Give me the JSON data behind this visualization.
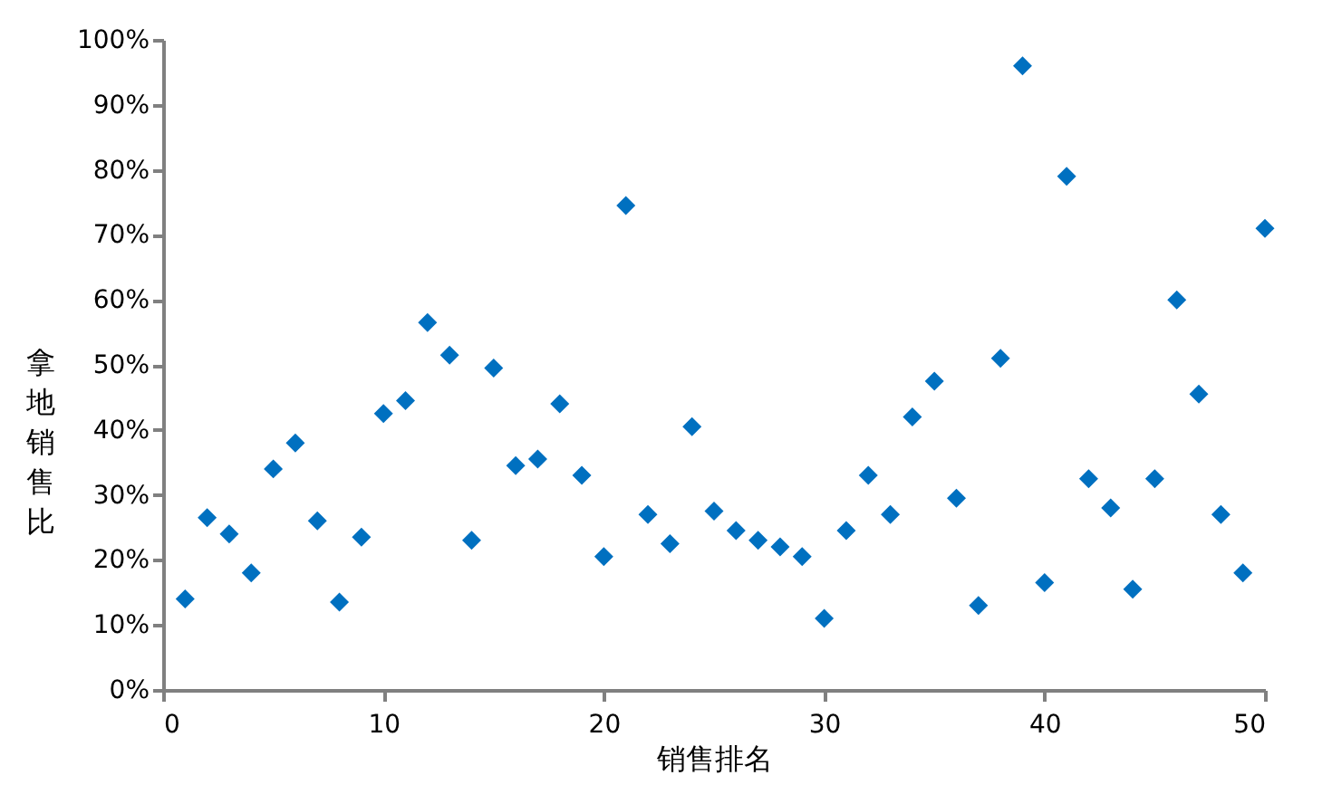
{
  "chart_data": {
    "type": "scatter",
    "xlabel": "销售排名",
    "ylabel": "拿地销售比",
    "x": [
      1,
      2,
      3,
      4,
      5,
      6,
      7,
      8,
      9,
      10,
      11,
      12,
      13,
      14,
      15,
      16,
      17,
      18,
      19,
      20,
      21,
      22,
      23,
      24,
      25,
      26,
      27,
      28,
      29,
      30,
      31,
      32,
      33,
      34,
      35,
      36,
      37,
      38,
      39,
      40,
      41,
      42,
      43,
      44,
      45,
      46,
      47,
      48,
      49,
      50
    ],
    "series": [
      {
        "color": "#0070c0",
        "values": [
          14,
          26.5,
          24,
          18,
          34,
          38,
          26,
          13.5,
          23.5,
          42.5,
          44.5,
          56.5,
          51.5,
          23,
          49.5,
          34.5,
          35.5,
          44,
          33,
          20.5,
          74.5,
          27,
          22.5,
          40.5,
          27.5,
          24.5,
          23,
          22,
          20.5,
          11,
          24.5,
          33,
          27,
          42,
          47.5,
          29.5,
          13,
          51,
          96,
          16.5,
          79,
          32.5,
          28,
          15.5,
          32.5,
          60,
          45.5,
          27,
          18,
          71
        ]
      }
    ],
    "marker": "diamond",
    "xlim": [
      0,
      50
    ],
    "xticks": [
      0,
      10,
      20,
      30,
      40,
      50
    ],
    "ylim": [
      0,
      100
    ],
    "yticks": [
      {
        "value": 0,
        "label": "0%"
      },
      {
        "value": 10,
        "label": "10%"
      },
      {
        "value": 20,
        "label": "20%"
      },
      {
        "value": 30,
        "label": "30%"
      },
      {
        "value": 40,
        "label": "40%"
      },
      {
        "value": 50,
        "label": "50%"
      },
      {
        "value": 60,
        "label": "60%"
      },
      {
        "value": 70,
        "label": "70%"
      },
      {
        "value": 80,
        "label": "80%"
      },
      {
        "value": 90,
        "label": "90%"
      },
      {
        "value": 100,
        "label": "100%"
      }
    ],
    "grid": false
  }
}
